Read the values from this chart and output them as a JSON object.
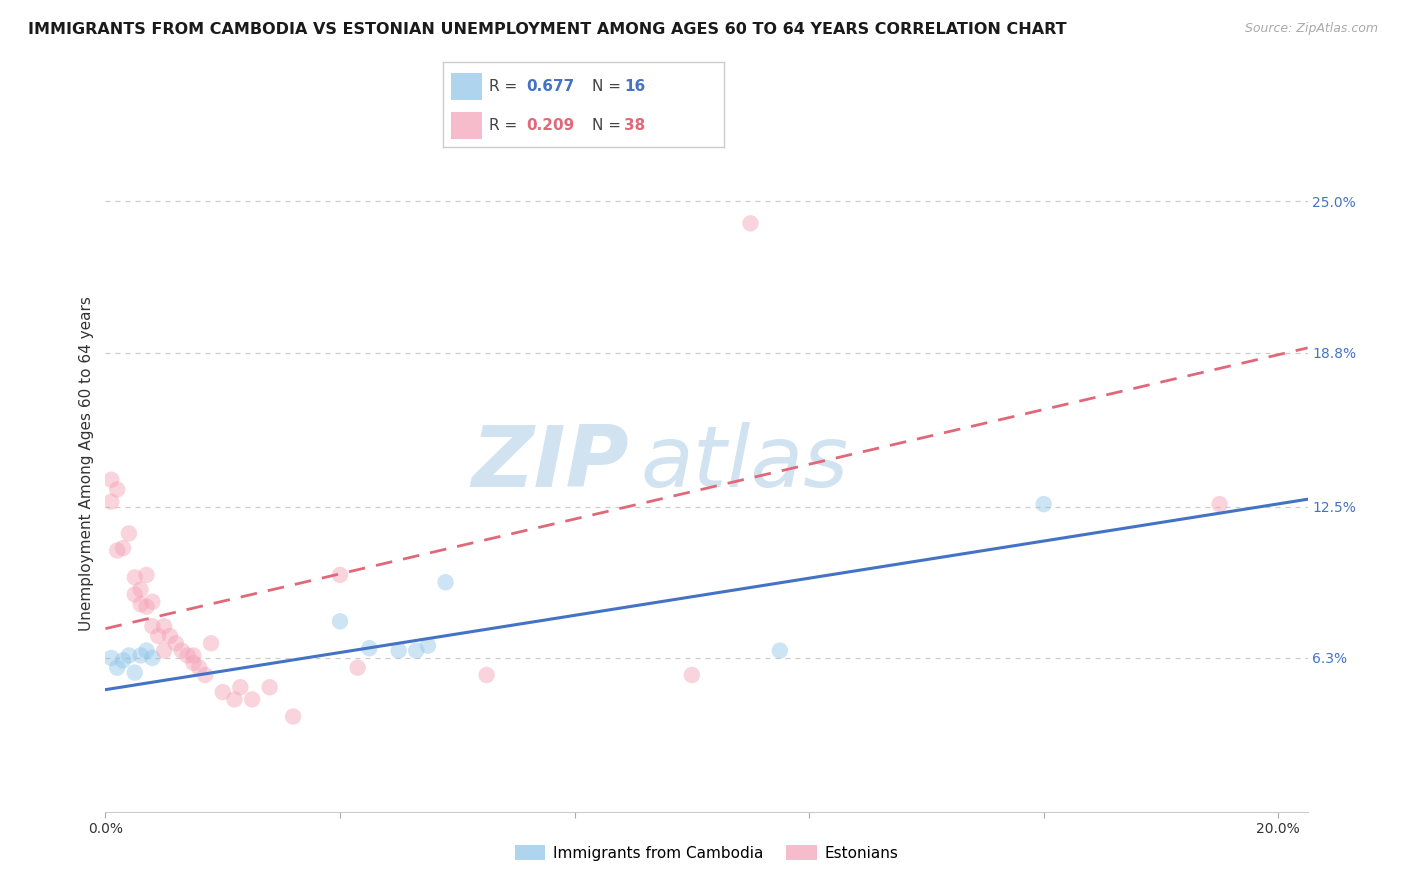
{
  "title": "IMMIGRANTS FROM CAMBODIA VS ESTONIAN UNEMPLOYMENT AMONG AGES 60 TO 64 YEARS CORRELATION CHART",
  "source": "Source: ZipAtlas.com",
  "ylabel": "Unemployment Among Ages 60 to 64 years",
  "xlim": [
    0.0,
    0.205
  ],
  "ylim": [
    0.0,
    0.285
  ],
  "xtick_vals": [
    0.0,
    0.04,
    0.08,
    0.12,
    0.16,
    0.2
  ],
  "xtick_labels": [
    "0.0%",
    "",
    "",
    "",
    "",
    "20.0%"
  ],
  "ytick_right_vals": [
    0.063,
    0.125,
    0.188,
    0.25
  ],
  "ytick_right_labels": [
    "6.3%",
    "12.5%",
    "18.8%",
    "25.0%"
  ],
  "blue_color": "#8ec4e8",
  "pink_color": "#f4a0b5",
  "blue_line_color": "#4472c4",
  "pink_line_color": "#e06878",
  "blue_scatter_x": [
    0.001,
    0.002,
    0.003,
    0.004,
    0.005,
    0.006,
    0.007,
    0.008,
    0.04,
    0.045,
    0.05,
    0.053,
    0.055,
    0.058,
    0.115,
    0.16
  ],
  "blue_scatter_y": [
    0.063,
    0.059,
    0.062,
    0.064,
    0.057,
    0.064,
    0.066,
    0.063,
    0.078,
    0.067,
    0.066,
    0.066,
    0.068,
    0.094,
    0.066,
    0.126
  ],
  "pink_scatter_x": [
    0.001,
    0.001,
    0.002,
    0.002,
    0.003,
    0.004,
    0.005,
    0.005,
    0.006,
    0.006,
    0.007,
    0.007,
    0.008,
    0.008,
    0.009,
    0.01,
    0.01,
    0.011,
    0.012,
    0.013,
    0.014,
    0.015,
    0.015,
    0.016,
    0.017,
    0.018,
    0.02,
    0.022,
    0.023,
    0.025,
    0.028,
    0.032,
    0.04,
    0.043,
    0.065,
    0.1,
    0.11,
    0.19
  ],
  "pink_scatter_y": [
    0.136,
    0.127,
    0.132,
    0.107,
    0.108,
    0.114,
    0.096,
    0.089,
    0.085,
    0.091,
    0.084,
    0.097,
    0.086,
    0.076,
    0.072,
    0.076,
    0.066,
    0.072,
    0.069,
    0.066,
    0.064,
    0.064,
    0.061,
    0.059,
    0.056,
    0.069,
    0.049,
    0.046,
    0.051,
    0.046,
    0.051,
    0.039,
    0.097,
    0.059,
    0.056,
    0.056,
    0.241,
    0.126
  ],
  "blue_trend_x": [
    0.0,
    0.205
  ],
  "blue_trend_y": [
    0.05,
    0.128
  ],
  "pink_trend_x": [
    0.0,
    0.205
  ],
  "pink_trend_y": [
    0.075,
    0.19
  ],
  "scatter_size": 140,
  "scatter_alpha": 0.45,
  "legend1_R": "0.677",
  "legend1_N": "16",
  "legend2_R": "0.209",
  "legend2_N": "38",
  "legend_label1": "Immigrants from Cambodia",
  "legend_label2": "Estonians",
  "watermark_zip": "ZIP",
  "watermark_atlas": "atlas",
  "grid_color": "#cccccc",
  "bg_color": "#ffffff"
}
